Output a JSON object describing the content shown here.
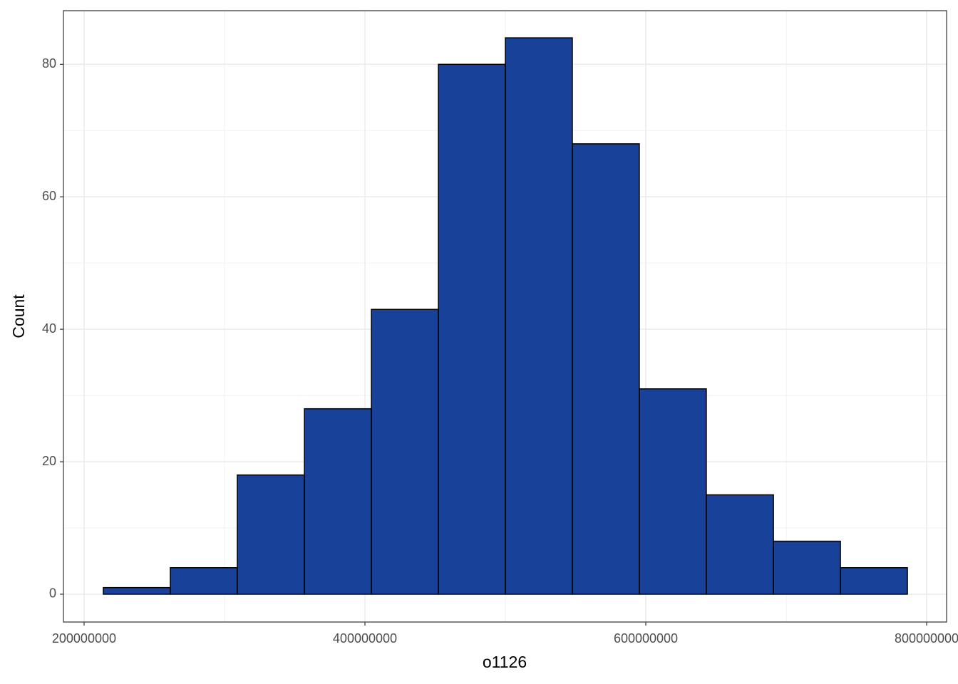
{
  "chart_data": {
    "type": "histogram",
    "x_label": "o1126",
    "y_label": "Count",
    "bins": [
      213700000,
      261400000,
      309100000,
      356900000,
      404600000,
      452300000,
      500000000,
      547700000,
      595400000,
      643100000,
      690900000,
      738600000,
      786300000
    ],
    "values": [
      1,
      4,
      18,
      28,
      43,
      80,
      84,
      68,
      31,
      15,
      8,
      4
    ],
    "color": "#18419a",
    "xlim": [
      185300000,
      814200000
    ],
    "xticks": [
      200000000,
      400000000,
      600000000,
      800000000
    ],
    "ylim": [
      -4.2,
      88.1
    ],
    "yticks": [
      0,
      20,
      40,
      60,
      80
    ],
    "grid": true
  }
}
